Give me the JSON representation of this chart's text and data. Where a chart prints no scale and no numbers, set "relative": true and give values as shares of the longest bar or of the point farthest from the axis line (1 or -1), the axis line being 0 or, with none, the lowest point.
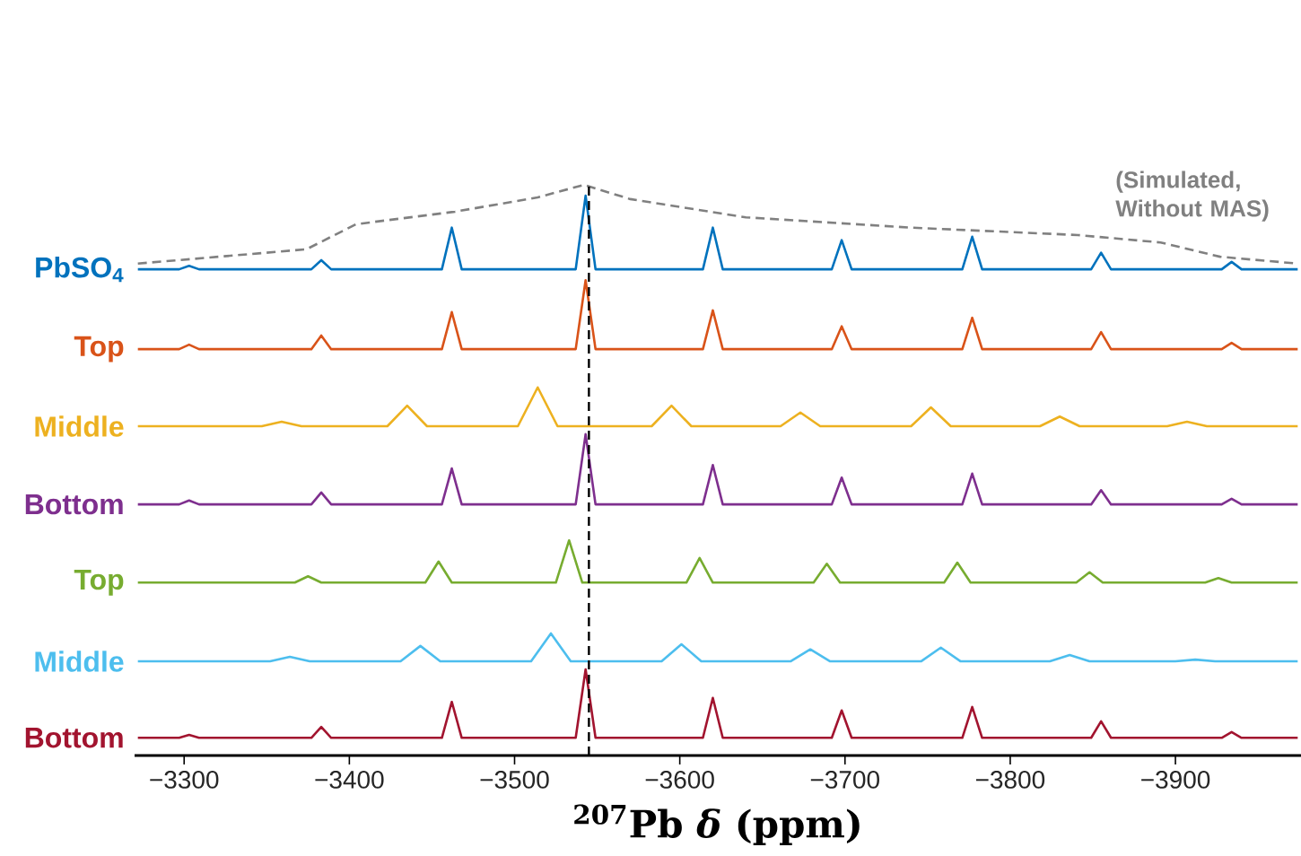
{
  "chart_data": {
    "type": "line",
    "relative": true,
    "xlabel": "$^{207}$Pb *δ* (ppm)",
    "xlim": [
      -3270,
      -3976
    ],
    "xticks": [
      {
        "value": -3300,
        "label": "−3300"
      },
      {
        "value": -3400,
        "label": "−3400"
      },
      {
        "value": -3500,
        "label": "−3500"
      },
      {
        "value": -3600,
        "label": "−3600"
      },
      {
        "value": -3700,
        "label": "−3700"
      },
      {
        "value": -3800,
        "label": "−3800"
      },
      {
        "value": -3900,
        "label": "−3900"
      }
    ],
    "grid": false,
    "marker": "none",
    "ref_lines": [
      {
        "axis": "x",
        "value": -3545,
        "color": "#000000",
        "line_style": "dashed"
      }
    ],
    "series": [
      {
        "name": "(Simulated, Without MAS)",
        "color": "#808080",
        "line_style": "dashed",
        "x": [
          -3272,
          -3374,
          -3404,
          -3464,
          -3514,
          -3542,
          -3570,
          -3640,
          -3740,
          -3841,
          -3891,
          -3927,
          -3974
        ],
        "values": [
          0.862,
          0.887,
          0.931,
          0.953,
          0.978,
          1.0,
          0.975,
          0.943,
          0.925,
          0.912,
          0.899,
          0.874,
          0.862
        ]
      },
      {
        "name": "PbSO$_{4}$",
        "color": "#0072bd",
        "x": [
          -3272,
          -3297,
          -3303,
          -3309,
          -3377,
          -3383,
          -3389,
          -3456,
          -3462,
          -3468,
          -3537,
          -3543,
          -3549,
          -3614,
          -3620,
          -3626,
          -3692,
          -3698,
          -3704,
          -3771,
          -3777,
          -3783,
          -3849,
          -3855,
          -3861,
          -3928,
          -3934,
          -3940,
          -3974
        ],
        "values": [
          0.852,
          0.852,
          0.858,
          0.852,
          0.852,
          0.868,
          0.852,
          0.852,
          0.925,
          0.852,
          0.852,
          0.981,
          0.852,
          0.852,
          0.925,
          0.852,
          0.852,
          0.903,
          0.852,
          0.852,
          0.909,
          0.852,
          0.852,
          0.881,
          0.852,
          0.852,
          0.865,
          0.852,
          0.852
        ]
      },
      {
        "name": "Top",
        "color": "#d95319",
        "x": [
          -3272,
          -3297,
          -3303,
          -3309,
          -3377,
          -3383,
          -3389,
          -3456,
          -3462,
          -3468,
          -3537,
          -3543,
          -3549,
          -3614,
          -3620,
          -3626,
          -3692,
          -3698,
          -3704,
          -3771,
          -3777,
          -3783,
          -3849,
          -3855,
          -3861,
          -3928,
          -3934,
          -3940,
          -3974
        ],
        "values": [
          0.712,
          0.712,
          0.72,
          0.712,
          0.712,
          0.736,
          0.712,
          0.712,
          0.777,
          0.712,
          0.712,
          0.833,
          0.712,
          0.712,
          0.78,
          0.712,
          0.712,
          0.752,
          0.712,
          0.712,
          0.767,
          0.712,
          0.712,
          0.742,
          0.712,
          0.712,
          0.723,
          0.712,
          0.712
        ]
      },
      {
        "name": "Middle",
        "color": "#edb120",
        "x": [
          -3272,
          -3347,
          -3359,
          -3371,
          -3423,
          -3435,
          -3447,
          -3502,
          -3514,
          -3526,
          -3583,
          -3595,
          -3607,
          -3661,
          -3673,
          -3685,
          -3740,
          -3752,
          -3764,
          -3818,
          -3830,
          -3842,
          -3895,
          -3907,
          -3919,
          -3974
        ],
        "values": [
          0.577,
          0.577,
          0.585,
          0.577,
          0.577,
          0.613,
          0.577,
          0.577,
          0.645,
          0.577,
          0.577,
          0.613,
          0.577,
          0.577,
          0.601,
          0.577,
          0.577,
          0.61,
          0.577,
          0.577,
          0.594,
          0.577,
          0.577,
          0.585,
          0.577,
          0.577
        ]
      },
      {
        "name": "Bottom",
        "color": "#7e2f8e",
        "x": [
          -3272,
          -3297,
          -3303,
          -3309,
          -3377,
          -3383,
          -3389,
          -3456,
          -3462,
          -3468,
          -3537,
          -3543,
          -3549,
          -3614,
          -3620,
          -3626,
          -3692,
          -3698,
          -3704,
          -3771,
          -3777,
          -3783,
          -3849,
          -3855,
          -3861,
          -3928,
          -3934,
          -3940,
          -3974
        ],
        "values": [
          0.44,
          0.44,
          0.447,
          0.44,
          0.44,
          0.461,
          0.44,
          0.44,
          0.503,
          0.44,
          0.44,
          0.563,
          0.44,
          0.44,
          0.509,
          0.44,
          0.44,
          0.487,
          0.44,
          0.44,
          0.494,
          0.44,
          0.44,
          0.465,
          0.44,
          0.44,
          0.45,
          0.44,
          0.44
        ]
      },
      {
        "name": "Top",
        "color": "#77ac30",
        "x": [
          -3272,
          -3367,
          -3375,
          -3383,
          -3446,
          -3454,
          -3462,
          -3525,
          -3533,
          -3541,
          -3604,
          -3612,
          -3620,
          -3681,
          -3689,
          -3697,
          -3760,
          -3768,
          -3776,
          -3840,
          -3848,
          -3856,
          -3918,
          -3926,
          -3934,
          -3974
        ],
        "values": [
          0.303,
          0.303,
          0.314,
          0.303,
          0.303,
          0.34,
          0.303,
          0.303,
          0.377,
          0.303,
          0.303,
          0.346,
          0.303,
          0.303,
          0.336,
          0.303,
          0.303,
          0.338,
          0.303,
          0.303,
          0.321,
          0.303,
          0.303,
          0.311,
          0.303,
          0.303
        ]
      },
      {
        "name": "Middle",
        "color": "#4dbeee",
        "x": [
          -3272,
          -3352,
          -3364,
          -3376,
          -3431,
          -3443,
          -3455,
          -3510,
          -3522,
          -3534,
          -3589,
          -3601,
          -3613,
          -3667,
          -3679,
          -3691,
          -3746,
          -3758,
          -3770,
          -3824,
          -3836,
          -3848,
          -3900,
          -3912,
          -3924,
          -3974
        ],
        "values": [
          0.165,
          0.165,
          0.173,
          0.165,
          0.165,
          0.192,
          0.165,
          0.165,
          0.214,
          0.165,
          0.165,
          0.195,
          0.165,
          0.165,
          0.186,
          0.165,
          0.165,
          0.189,
          0.165,
          0.165,
          0.176,
          0.165,
          0.165,
          0.168,
          0.165,
          0.165
        ]
      },
      {
        "name": "Bottom",
        "color": "#a2142f",
        "x": [
          -3272,
          -3297,
          -3303,
          -3309,
          -3377,
          -3383,
          -3389,
          -3456,
          -3462,
          -3468,
          -3537,
          -3543,
          -3549,
          -3614,
          -3620,
          -3626,
          -3692,
          -3698,
          -3704,
          -3771,
          -3777,
          -3783,
          -3849,
          -3855,
          -3861,
          -3928,
          -3934,
          -3940,
          -3974
        ],
        "values": [
          0.031,
          0.031,
          0.036,
          0.031,
          0.031,
          0.05,
          0.031,
          0.031,
          0.094,
          0.031,
          0.031,
          0.151,
          0.031,
          0.031,
          0.101,
          0.031,
          0.031,
          0.079,
          0.031,
          0.031,
          0.085,
          0.031,
          0.031,
          0.06,
          0.031,
          0.031,
          0.041,
          0.031,
          0.031
        ]
      }
    ]
  }
}
